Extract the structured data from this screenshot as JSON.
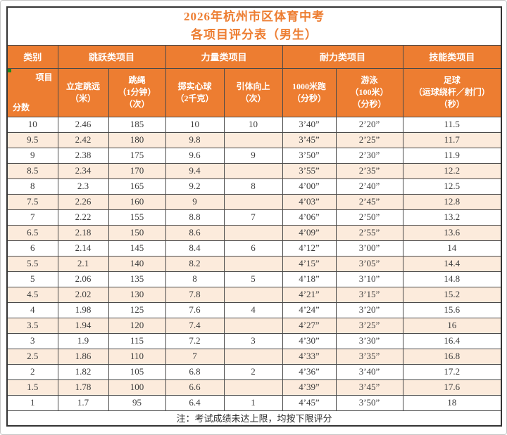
{
  "title": {
    "line1": "2026年杭州市区体育中考",
    "line2": "各项目评分表（男生）"
  },
  "header": {
    "corner": {
      "top": "项目",
      "bottom": "分数"
    },
    "categories": [
      "类别",
      "跳跃类项目",
      "力量类项目",
      "耐力类项目",
      "技能类项目"
    ],
    "columns": [
      "立定跳远\n（米）",
      "跳绳\n（1分钟）\n（次）",
      "掷实心球\n（2千克）",
      "引体向上\n（次）",
      "1000米跑\n（分秒）",
      "游泳\n（100米）\n（分秒）",
      "足球\n（运球绕杆／射门）\n（秒）"
    ]
  },
  "rows": [
    [
      "10",
      "2.46",
      "185",
      "10",
      "10",
      "3’40”",
      "2’20”",
      "11.5"
    ],
    [
      "9.5",
      "2.42",
      "180",
      "9.8",
      "",
      "3’45”",
      "2’25”",
      "11.7"
    ],
    [
      "9",
      "2.38",
      "175",
      "9.6",
      "9",
      "3’50”",
      "2’30”",
      "11.9"
    ],
    [
      "8.5",
      "2.34",
      "170",
      "9.4",
      "",
      "3’55”",
      "2’35”",
      "12.2"
    ],
    [
      "8",
      "2.3",
      "165",
      "9.2",
      "8",
      "4’00”",
      "2’40”",
      "12.5"
    ],
    [
      "7.5",
      "2.26",
      "160",
      "9",
      "",
      "4’03”",
      "2’45”",
      "12.8"
    ],
    [
      "7",
      "2.22",
      "155",
      "8.8",
      "7",
      "4’06”",
      "2’50”",
      "13.2"
    ],
    [
      "6.5",
      "2.18",
      "150",
      "8.6",
      "",
      "4’09”",
      "2’55”",
      "13.6"
    ],
    [
      "6",
      "2.14",
      "145",
      "8.4",
      "6",
      "4’12”",
      "3’00”",
      "14"
    ],
    [
      "5.5",
      "2.1",
      "140",
      "8.2",
      "",
      "4’15”",
      "3’05”",
      "14.4"
    ],
    [
      "5",
      "2.06",
      "135",
      "8",
      "5",
      "4’18”",
      "3’10”",
      "14.8"
    ],
    [
      "4.5",
      "2.02",
      "130",
      "7.8",
      "",
      "4’21”",
      "3’15”",
      "15.2"
    ],
    [
      "4",
      "1.98",
      "125",
      "7.6",
      "4",
      "4’24”",
      "3’20”",
      "15.6"
    ],
    [
      "3.5",
      "1.94",
      "120",
      "7.4",
      "",
      "4’27”",
      "3’25”",
      "16"
    ],
    [
      "3",
      "1.9",
      "115",
      "7.2",
      "3",
      "4’30”",
      "3’30”",
      "16.4"
    ],
    [
      "2.5",
      "1.86",
      "110",
      "7",
      "",
      "4’33”",
      "3’35”",
      "16.8"
    ],
    [
      "2",
      "1.82",
      "105",
      "6.8",
      "2",
      "4’36”",
      "3’40”",
      "17.2"
    ],
    [
      "1.5",
      "1.78",
      "100",
      "6.6",
      "",
      "4’39”",
      "3’45”",
      "17.6"
    ],
    [
      "1",
      "1.7",
      "95",
      "6.4",
      "1",
      "4’45”",
      "3’50”",
      "18"
    ]
  ],
  "footer": {
    "note": "注：考试成绩未达上限，均按下限评分"
  },
  "colors": {
    "header_bg": "#ED7D31",
    "title_text": "#ED7D31",
    "stripe_bg": "#FCEBDC",
    "border": "#4A4A4A",
    "marker_green": "#1C8A1C"
  }
}
